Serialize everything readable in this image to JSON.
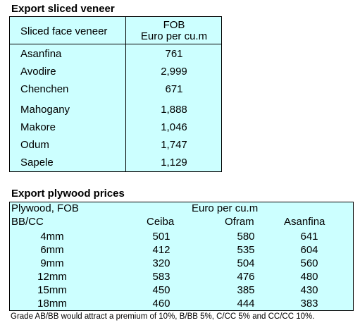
{
  "section1": {
    "title": "Export sliced veneer",
    "header_left": "Sliced face veneer",
    "header_right_line1": "FOB",
    "header_right_line2": "Euro per cu.m",
    "rows": [
      {
        "name": "Asanfina",
        "value": "761"
      },
      {
        "name": "Avodire",
        "value": "2,999"
      },
      {
        "name": "Chenchen",
        "value": "671"
      },
      {
        "name": "Mahogany",
        "value": "1,888"
      },
      {
        "name": "Makore",
        "value": "1,046"
      },
      {
        "name": "Odum",
        "value": "1,747"
      },
      {
        "name": "Sapele",
        "value": "1,129"
      }
    ]
  },
  "section2": {
    "title": "Export plywood prices",
    "header_left_line1": "Plywood, FOB",
    "header_left_line2": "BB/CC",
    "header_group": "Euro per cu.m",
    "columns": [
      "Ceiba",
      "Ofram",
      "Asanfina"
    ],
    "rows": [
      {
        "size": "4mm",
        "values": [
          "501",
          "580",
          "641"
        ]
      },
      {
        "size": "6mm",
        "values": [
          "412",
          "535",
          "604"
        ]
      },
      {
        "size": "9mm",
        "values": [
          "320",
          "504",
          "560"
        ]
      },
      {
        "size": "12mm",
        "values": [
          "583",
          "476",
          "480"
        ]
      },
      {
        "size": "15mm",
        "values": [
          "450",
          "385",
          "430"
        ]
      },
      {
        "size": "18mm",
        "values": [
          "460",
          "444",
          "383"
        ]
      }
    ],
    "footnote": "Grade AB/BB would attract a premium of 10%, B/BB 5%, C/CC 5% and CC/CC 10%."
  }
}
